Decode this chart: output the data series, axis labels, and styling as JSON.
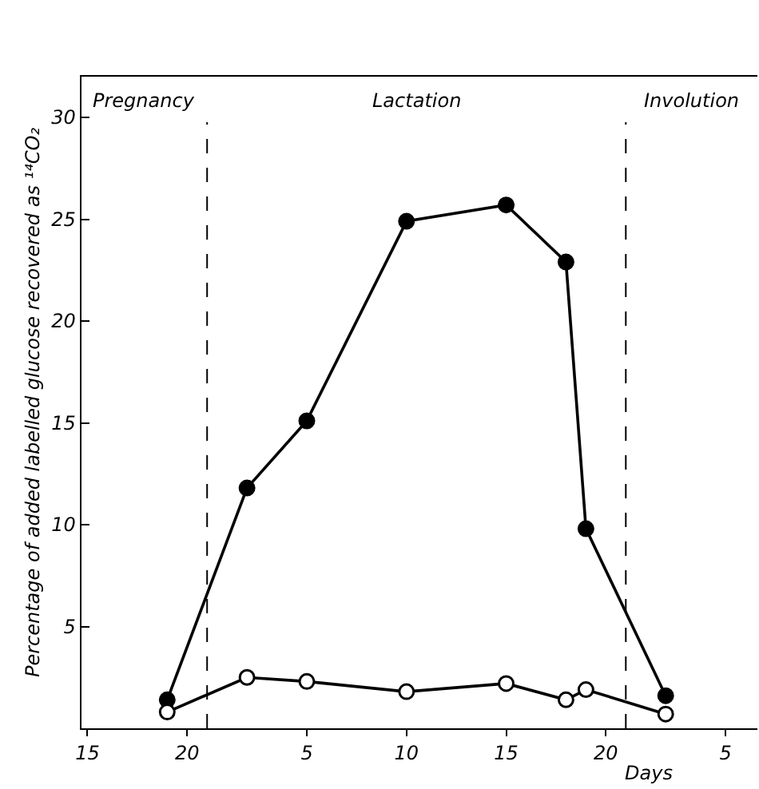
{
  "chart_data": {
    "type": "line",
    "xlabel": "Days",
    "ylabel": "Percentage of added labelled glucose recovered as ¹⁴CO₂",
    "categories": [
      "15",
      null,
      null,
      null,
      null,
      "20",
      null,
      null,
      null,
      null,
      null,
      "5",
      null,
      null,
      null,
      null,
      "10",
      null,
      null,
      null,
      null,
      "15",
      null,
      null,
      null,
      null,
      "20",
      null,
      null,
      null,
      null,
      null,
      "5",
      null
    ],
    "series": [
      {
        "color": "#000000",
        "marker": "circle",
        "values": [
          null,
          null,
          null,
          null,
          1.4,
          null,
          null,
          null,
          11.8,
          null,
          null,
          15.1,
          null,
          null,
          null,
          null,
          24.9,
          null,
          null,
          null,
          null,
          25.7,
          null,
          null,
          22.9,
          9.8,
          null,
          null,
          null,
          1.6,
          null,
          null,
          null,
          null
        ]
      },
      {
        "color": "#000000",
        "marker": "open circle",
        "values": [
          null,
          null,
          null,
          null,
          0.8,
          null,
          null,
          null,
          2.5,
          null,
          null,
          2.3,
          null,
          null,
          null,
          null,
          1.8,
          null,
          null,
          null,
          null,
          2.2,
          null,
          null,
          1.4,
          1.9,
          null,
          null,
          null,
          0.7,
          null,
          null,
          null,
          null
        ]
      }
    ],
    "ylim": [
      0,
      32
    ],
    "yticks": [
      5,
      10,
      15,
      20,
      25,
      30
    ],
    "annotations": [
      "Pregnancy",
      "Lactation",
      "Involution"
    ],
    "line_style": "solid"
  }
}
